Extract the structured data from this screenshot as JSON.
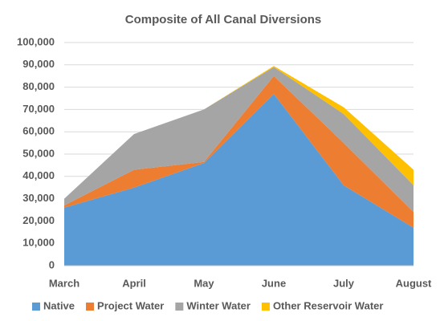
{
  "chart_data": {
    "type": "stacked_area",
    "title": "Composite of All Canal Diversions",
    "categories": [
      "March",
      "April",
      "May",
      "June",
      "July",
      "August"
    ],
    "series": [
      {
        "name": "Native",
        "color": "#5b9bd5",
        "values": [
          26000,
          35000,
          46000,
          77000,
          36000,
          17000
        ]
      },
      {
        "name": "Project Water",
        "color": "#ed7d31",
        "values": [
          1000,
          8000,
          500,
          8000,
          19000,
          7000
        ]
      },
      {
        "name": "Winter Water",
        "color": "#a5a5a5",
        "values": [
          3000,
          16000,
          23500,
          4000,
          13000,
          12000
        ]
      },
      {
        "name": "Other Reservoir Water",
        "color": "#ffc000",
        "values": [
          0,
          0,
          0,
          500,
          3000,
          7000
        ]
      }
    ],
    "ylim": [
      0,
      100000
    ],
    "yticks": [
      0,
      {
        "value": 10000,
        "label": "10,000"
      },
      {
        "value": 20000,
        "label": "20,000"
      },
      {
        "value": 30000,
        "label": "30,000"
      },
      {
        "value": 40000,
        "label": "40,000"
      },
      {
        "value": 50000,
        "label": "50,000"
      },
      {
        "value": 60000,
        "label": "60,000"
      },
      {
        "value": 70000,
        "label": "70,000"
      },
      {
        "value": 80000,
        "label": "80,000"
      },
      {
        "value": 90000,
        "label": "90,000"
      },
      {
        "value": 100000,
        "label": "100,000"
      }
    ],
    "grid": true,
    "legend": "bottom"
  }
}
